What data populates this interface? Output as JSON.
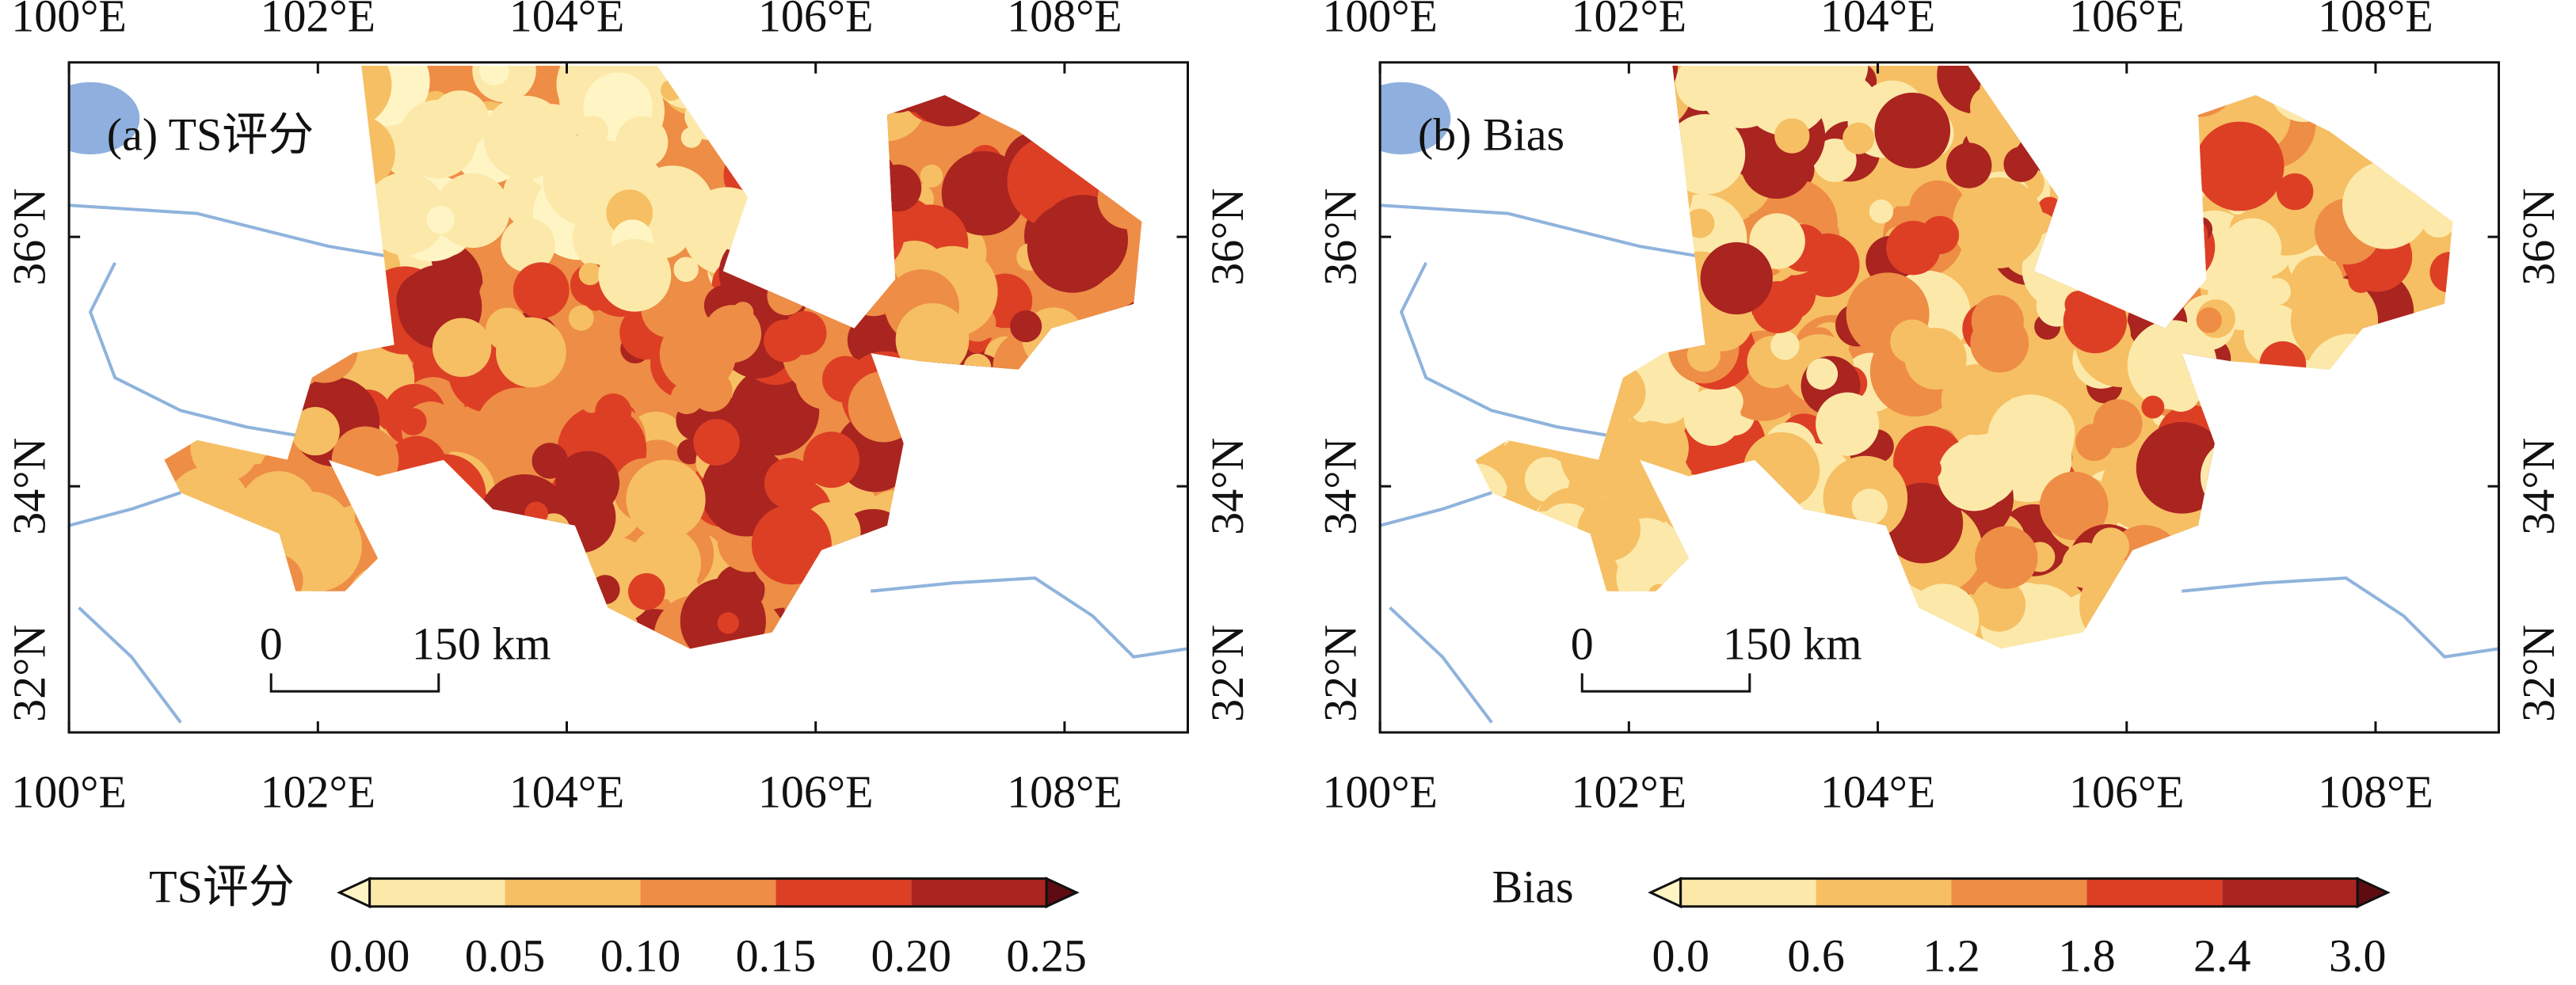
{
  "panels": [
    {
      "label": "(a) TS评分",
      "lon_ticks": [
        "100°E",
        "102°E",
        "104°E",
        "106°E",
        "108°E"
      ],
      "lat_ticks": [
        "32°N",
        "34°N",
        "36°N"
      ],
      "scale_bar": {
        "start": "0",
        "end": "150 km"
      },
      "colorbar": {
        "title": "TS评分",
        "ticks": [
          "0.00",
          "0.05",
          "0.10",
          "0.15",
          "0.20",
          "0.25"
        ],
        "colors": [
          "#fff5c4",
          "#fce9aa",
          "#f6bf63",
          "#ee8d45",
          "#dd3f25",
          "#aa2420",
          "#5e0c12"
        ]
      }
    },
    {
      "label": "(b) Bias",
      "lon_ticks": [
        "100°E",
        "102°E",
        "104°E",
        "106°E",
        "108°E"
      ],
      "lat_ticks": [
        "32°N",
        "34°N",
        "36°N"
      ],
      "scale_bar": {
        "start": "0",
        "end": "150 km"
      },
      "colorbar": {
        "title": "Bias",
        "ticks": [
          "0.0",
          "0.6",
          "1.2",
          "1.8",
          "2.4",
          "3.0"
        ],
        "colors": [
          "#fff5c4",
          "#fce9aa",
          "#f6bf63",
          "#ee8d45",
          "#dd3f25",
          "#aa2420",
          "#5e0c12"
        ]
      }
    }
  ]
}
